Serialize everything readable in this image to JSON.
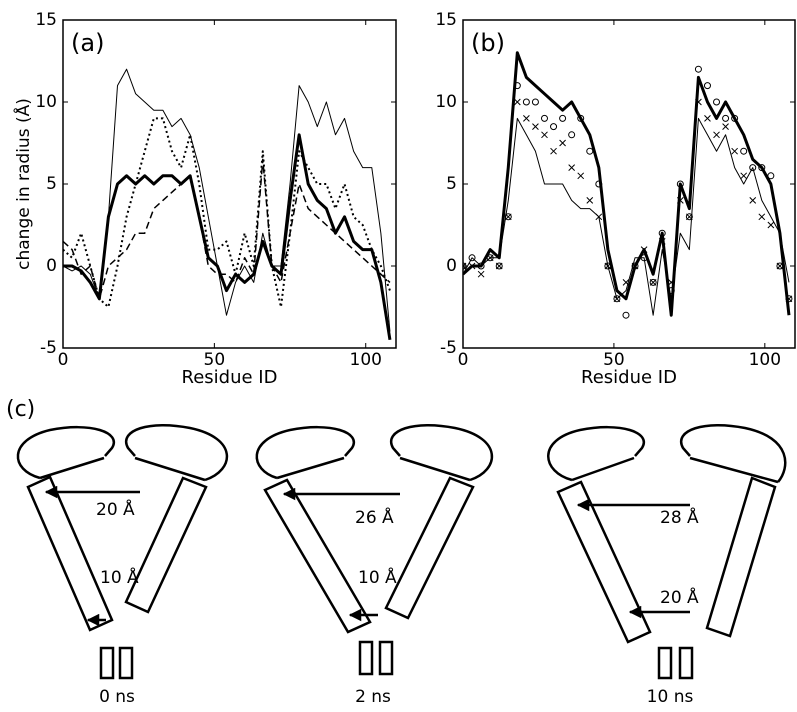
{
  "chart_data": [
    {
      "type": "line",
      "annotation": "(a)",
      "xlabel": "Residue ID",
      "ylabel": "change in radius (Å)",
      "xlim": [
        0,
        110
      ],
      "ylim": [
        -5,
        15
      ],
      "xticks": [
        0,
        50,
        100
      ],
      "yticks": [
        -5,
        0,
        5,
        10,
        15
      ],
      "x": [
        0,
        3,
        6,
        9,
        12,
        15,
        18,
        21,
        24,
        27,
        30,
        33,
        36,
        39,
        42,
        45,
        48,
        51,
        54,
        57,
        60,
        63,
        66,
        69,
        72,
        75,
        78,
        81,
        84,
        87,
        90,
        93,
        96,
        99,
        102,
        105,
        108
      ],
      "series": [
        {
          "color": "#000000",
          "style": "solid",
          "width": 1,
          "values": [
            0,
            -0.3,
            0,
            -0.5,
            -2,
            3,
            11,
            12,
            10.5,
            10,
            9.5,
            9.5,
            8.5,
            9,
            8,
            6,
            3,
            0,
            -3,
            -1,
            0,
            -1,
            2,
            0,
            0,
            5,
            11,
            10,
            8.5,
            10,
            8,
            9,
            7,
            6,
            6,
            2,
            -4
          ]
        },
        {
          "color": "#000000",
          "style": "solid",
          "width": 3,
          "values": [
            0,
            0,
            -0.3,
            -1,
            -2,
            3,
            5,
            5.5,
            5,
            5.5,
            5,
            5.5,
            5.5,
            5,
            5.5,
            3,
            0.5,
            0,
            -1.5,
            -0.5,
            -1,
            -0.5,
            1.5,
            0,
            -0.5,
            4,
            8,
            5,
            4,
            3.5,
            2,
            3,
            1.5,
            1,
            1,
            -1,
            -4.5
          ]
        },
        {
          "color": "#000000",
          "style": "dotted",
          "width": 2,
          "values": [
            1,
            0.5,
            2,
            0,
            -2,
            -2.5,
            0,
            3,
            5,
            7,
            9,
            9,
            7,
            6,
            8,
            5,
            1,
            1,
            1.5,
            -0.5,
            2,
            0,
            7,
            0,
            -2.5,
            2,
            7,
            6,
            5,
            5,
            3.5,
            5,
            3,
            2.5,
            1,
            0,
            -1.5
          ]
        },
        {
          "color": "#000000",
          "style": "dashed",
          "width": 1.5,
          "values": [
            1.5,
            1,
            -0.5,
            0,
            -2,
            0,
            0.5,
            1,
            2,
            2,
            3.5,
            4,
            4.5,
            5,
            5.5,
            3,
            0,
            -0.5,
            -0.5,
            -1,
            0.5,
            -0.5,
            6.5,
            0,
            -1,
            2,
            5,
            3.5,
            3,
            2.5,
            2,
            1.5,
            1,
            0.5,
            0,
            -0.5,
            -1
          ]
        }
      ]
    },
    {
      "type": "line",
      "annotation": "(b)",
      "xlabel": "Residue ID",
      "xlim": [
        0,
        110
      ],
      "ylim": [
        -5,
        15
      ],
      "xticks": [
        0,
        50,
        100
      ],
      "yticks": [
        -5,
        0,
        5,
        10,
        15
      ],
      "x": [
        0,
        3,
        6,
        9,
        12,
        15,
        18,
        21,
        24,
        27,
        30,
        33,
        36,
        39,
        42,
        45,
        48,
        51,
        54,
        57,
        60,
        63,
        66,
        69,
        72,
        75,
        78,
        81,
        84,
        87,
        90,
        93,
        96,
        99,
        102,
        105,
        108
      ],
      "series": [
        {
          "color": "#000000",
          "style": "solid",
          "width": 3,
          "values": [
            -0.5,
            0,
            0,
            1,
            0.5,
            6,
            13,
            11.5,
            11,
            10.5,
            10,
            9.5,
            10,
            9,
            8,
            6,
            1,
            -1.5,
            -2,
            0,
            1,
            -0.5,
            2,
            -3,
            5,
            3.5,
            11.5,
            10,
            9,
            10,
            9,
            8,
            6.5,
            6,
            5,
            2,
            -3
          ]
        },
        {
          "color": "#000000",
          "style": "solid",
          "width": 1,
          "values": [
            -0.5,
            0.5,
            0,
            0.5,
            0.5,
            4,
            9,
            8,
            7,
            5,
            5,
            5,
            4,
            3.5,
            3.5,
            3,
            0,
            -2,
            -1.5,
            0.5,
            0.5,
            -3,
            1,
            -2,
            2,
            1,
            9,
            8,
            7,
            8,
            6,
            5,
            6,
            4,
            3,
            2,
            -1
          ]
        },
        {
          "color": "#000000",
          "style": "circle",
          "width": 1,
          "values": [
            0,
            0.5,
            0,
            0.5,
            0,
            3,
            11,
            10,
            10,
            9,
            8.5,
            9,
            8,
            9,
            7,
            5,
            0,
            -2,
            -3,
            0,
            0.5,
            -1,
            2,
            -1.5,
            5,
            3,
            12,
            11,
            10,
            9,
            9,
            7,
            6,
            6,
            5.5,
            0,
            -2
          ]
        },
        {
          "color": "#000000",
          "style": "cross",
          "width": 1,
          "values": [
            0,
            0,
            -0.5,
            0.5,
            0,
            3,
            10,
            9,
            8.5,
            8,
            7,
            7.5,
            6,
            5.5,
            4,
            3,
            0,
            -2,
            -1,
            0,
            1,
            -1,
            1.5,
            -1,
            4,
            3,
            10,
            9,
            8,
            8.5,
            7,
            5.5,
            4,
            3,
            2.5,
            0,
            -2
          ]
        }
      ]
    }
  ],
  "diagram": {
    "label": "(c)",
    "panels": [
      {
        "top_label": "20 Å",
        "bottom_label": "10 Å",
        "time": "0 ns"
      },
      {
        "top_label": "26 Å",
        "bottom_label": "10 Å",
        "time": "2 ns"
      },
      {
        "top_label": "28 Å",
        "bottom_label": "20 Å",
        "time": "10 ns"
      }
    ]
  }
}
